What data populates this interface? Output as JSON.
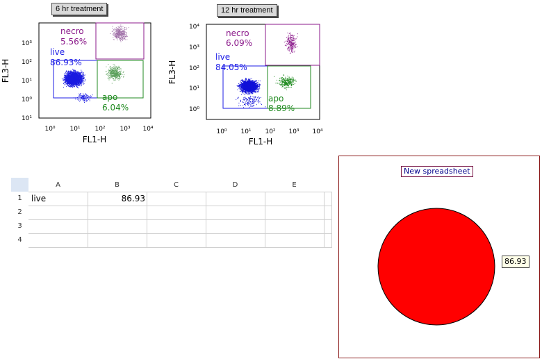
{
  "plots": [
    {
      "title": "6 hr treatment",
      "x_label": "FL1-H",
      "y_label": "FL3-H",
      "x_ticks": [
        "10⁰",
        "10¹",
        "10²",
        "10³",
        "10⁴"
      ],
      "y_ticks": [
        "10¹",
        "10⁰",
        "10¹",
        "10²",
        "10³"
      ],
      "gates": [
        {
          "name": "necro",
          "percent": "5.56%",
          "color": "#8b1a8b"
        },
        {
          "name": "live",
          "percent": "86.93%",
          "color": "#1e1ee6"
        },
        {
          "name": "apo",
          "percent": "6.04%",
          "color": "#1f8a1f"
        }
      ]
    },
    {
      "title": "12 hr treatment",
      "x_label": "FL1-H",
      "y_label": "FL3-H",
      "x_ticks": [
        "10⁰",
        "10¹",
        "10²",
        "10³",
        "10⁴"
      ],
      "y_ticks": [
        "10⁰",
        "10¹",
        "10²",
        "10³",
        "10⁴"
      ],
      "gates": [
        {
          "name": "necro",
          "percent": "6.09%",
          "color": "#8b1a8b"
        },
        {
          "name": "live",
          "percent": "84.05%",
          "color": "#1e1ee6"
        },
        {
          "name": "apo",
          "percent": "8.89%",
          "color": "#1f8a1f"
        }
      ]
    }
  ],
  "spreadsheet": {
    "columns": [
      "A",
      "B",
      "C",
      "D",
      "E"
    ],
    "rows": [
      "1",
      "2",
      "3",
      "4"
    ],
    "cells": {
      "A1": "live",
      "B1": "86.93"
    }
  },
  "pie_panel": {
    "title": "New spreadsheet",
    "slice_label": "86.93",
    "slice_color": "#ff0000"
  },
  "chart_data": {
    "type": "pie",
    "title": "New spreadsheet",
    "categories": [
      "live"
    ],
    "values": [
      86.93
    ]
  }
}
